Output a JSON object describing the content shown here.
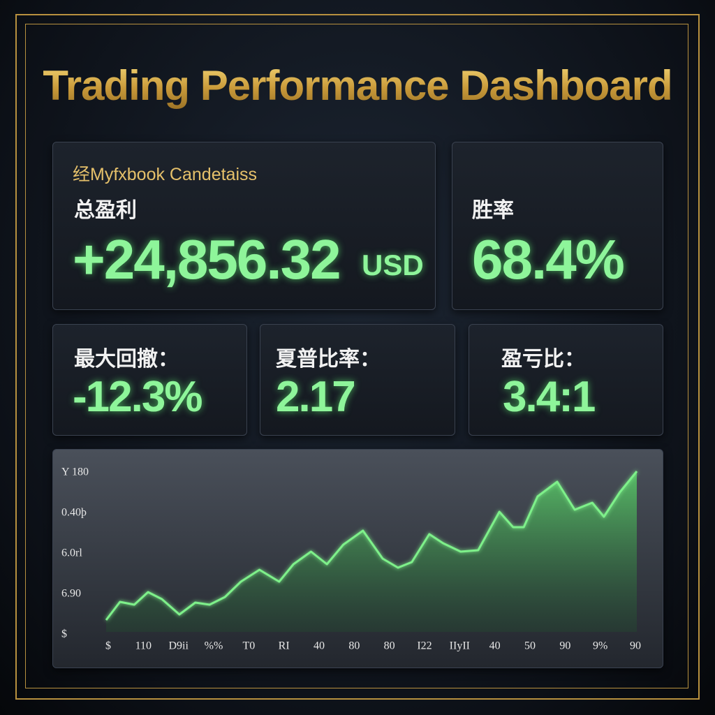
{
  "header": {
    "title": "Trading Performance Dashboard"
  },
  "cards": {
    "profit": {
      "subtitle": "经Myfxbook Candetaiss",
      "label": "总盈利",
      "value": "+24,856.32",
      "unit": "USD"
    },
    "win_rate": {
      "label": "胜率",
      "value": "68.4%"
    },
    "drawdown": {
      "label": "最大回撤：",
      "value": "-12.3%"
    },
    "sharpe": {
      "label": "夏普比率：",
      "value": "2.17"
    },
    "profit_loss": {
      "label": "盈亏比：",
      "value": "3.4:1"
    }
  },
  "chart_data": {
    "type": "area",
    "color": "#7ef08a",
    "y_labels": [
      "Y 180",
      "0.40þ",
      "6.0rl",
      "6.90",
      "$"
    ],
    "x_labels": [
      "$",
      "110",
      "D9ii",
      "%%",
      "T0",
      "RI",
      "40",
      "80",
      "80",
      "I22",
      "IIyII",
      "40",
      "50",
      "90",
      "9%",
      "90"
    ],
    "xlim": [
      0,
      100
    ],
    "ylim": [
      0,
      100
    ],
    "x": [
      0,
      2.6,
      5.3,
      7.9,
      10.5,
      13.8,
      16.8,
      19.5,
      22.4,
      25.4,
      28.9,
      32.6,
      35.3,
      38.6,
      41.6,
      44.7,
      48.4,
      52.1,
      55,
      57.6,
      60.9,
      63.5,
      66.8,
      70.1,
      74.1,
      76.7,
      78.7,
      81.3,
      85,
      88.3,
      91.6,
      93.8,
      96.8,
      100
    ],
    "values": [
      4.8,
      15.2,
      13.6,
      20.8,
      16.8,
      8,
      14.8,
      13.6,
      18,
      26.8,
      33.6,
      26.8,
      36.8,
      44,
      36.8,
      48,
      56,
      40,
      34.8,
      38,
      54,
      48.8,
      44,
      44.8,
      66.8,
      58,
      58,
      75.6,
      84,
      68,
      72,
      64,
      78,
      90
    ]
  }
}
